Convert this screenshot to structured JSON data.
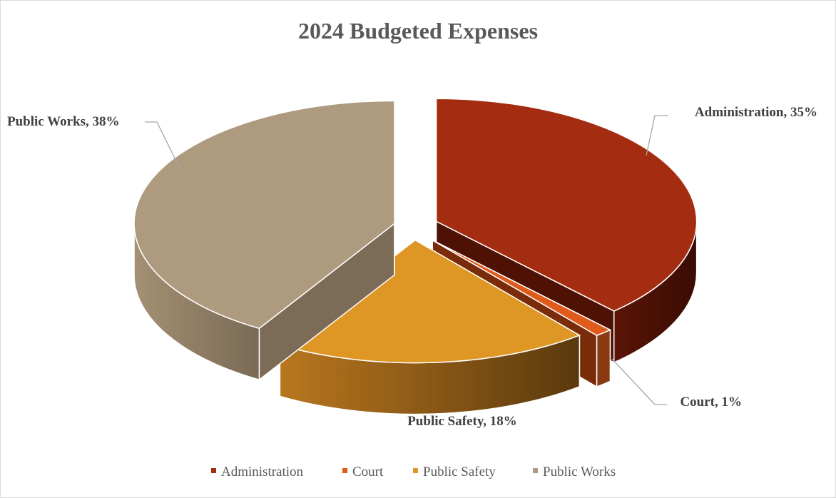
{
  "chart_data": {
    "type": "pie",
    "title": "2024 Budgeted Expenses",
    "categories": [
      "Administration",
      "Court",
      "Public Safety",
      "Public Works"
    ],
    "values": [
      35,
      1,
      18,
      38
    ],
    "unit": "%",
    "colors": [
      "#a42c10",
      "#e05a1a",
      "#de9624",
      "#ae9a7e"
    ],
    "legend": "bottom",
    "exploded": true,
    "data_labels": [
      "Administration, 35%",
      "Court, 1%",
      "Public Safety, 18%",
      "Public Works, 38%"
    ],
    "legend_entries": [
      "Administration",
      "Court",
      "Public Safety",
      "Public Works"
    ]
  }
}
